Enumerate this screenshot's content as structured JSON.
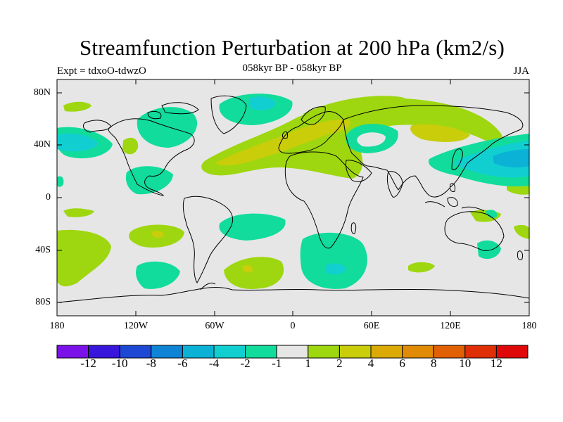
{
  "header": {
    "title": "Streamfunction Perturbation at 200 hPa (km2/s)",
    "subtitle": "058kyr BP - 058kyr BP",
    "left_label": "Expt = tdxoO-tdwzO",
    "right_label": "JJA"
  },
  "map": {
    "projection": "cylindrical-equidistant",
    "lat_labels": [
      "80N",
      "40N",
      "0",
      "40S",
      "80S"
    ],
    "lon_labels": [
      "180",
      "120W",
      "60W",
      "0",
      "60E",
      "120E",
      "180"
    ],
    "background_color": "#e6e6e6",
    "features": [
      "coastlines",
      "filled-contours"
    ]
  },
  "colorbar": {
    "colors": [
      "#7b12ea",
      "#3916dc",
      "#1c48d4",
      "#0f84d6",
      "#0bb2d6",
      "#11cfd0",
      "#11dc9c",
      "#e6e6e6",
      "#9ed70f",
      "#c9cd0a",
      "#dcaa06",
      "#e08a05",
      "#e16004",
      "#e02f06",
      "#e00909"
    ],
    "labels": [
      "-12",
      "-10",
      "-8",
      "-6",
      "-4",
      "-2",
      "-1",
      "1",
      "2",
      "4",
      "6",
      "8",
      "10",
      "12"
    ]
  }
}
